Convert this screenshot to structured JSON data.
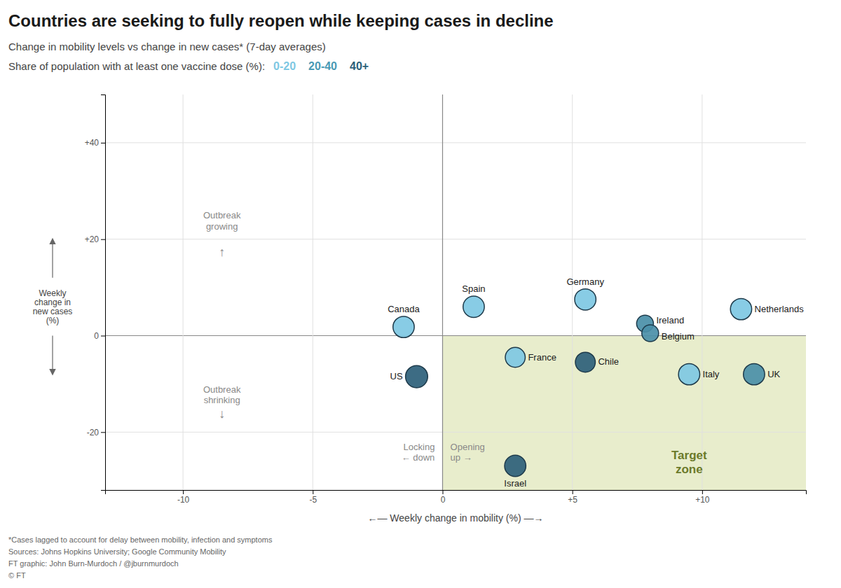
{
  "chart_data": {
    "type": "scatter",
    "title": "Countries are seeking to fully reopen while keeping cases in decline",
    "subtitle": "Change in mobility levels vs change in new cases* (7-day averages)",
    "legend_title": "Share of population with at least one vaccine dose (%):",
    "legend_labels": [
      "0-20",
      "20-40",
      "40+"
    ],
    "legend_colors": [
      "#7ec8e3",
      "#4a9ab5",
      "#2c5f7a"
    ],
    "x_label": "←— Weekly change in mobility (%) —→",
    "y_label": "Weekly\nchange in\nnew cases\n(%)",
    "xlim": [
      -13,
      14
    ],
    "ylim": [
      -32,
      50
    ],
    "xticks": [
      -10,
      -5,
      0,
      {
        "value": 5,
        "label": "+5"
      },
      {
        "value": 10,
        "label": "+10"
      }
    ],
    "yticks": [
      -20,
      0,
      {
        "value": 20,
        "label": "+20"
      },
      {
        "value": 40,
        "label": "+40"
      }
    ],
    "grid": true,
    "labels": [
      "UK",
      "Italy",
      "Netherlands",
      "Germany",
      "Ireland",
      "Belgium",
      "Spain",
      "France",
      "Chile",
      "Canada",
      "US",
      "Israel"
    ],
    "x": [
      12.0,
      9.5,
      11.5,
      5.5,
      7.8,
      8.0,
      1.2,
      2.8,
      5.5,
      -1.5,
      -1.0,
      2.8
    ],
    "values": [
      -8.0,
      -8.0,
      5.5,
      7.5,
      2.5,
      0.5,
      6.0,
      -4.5,
      -5.5,
      1.8,
      -8.5,
      -27.0
    ],
    "size": [
      480,
      480,
      480,
      480,
      300,
      300,
      480,
      420,
      420,
      480,
      520,
      480
    ],
    "colors": [
      "#4a8fa8",
      "#7ec8e3",
      "#7ec8e3",
      "#7ec8e3",
      "#4a8fa8",
      "#4a8fa8",
      "#7ec8e3",
      "#7ec8e3",
      "#2c5f7a",
      "#7ec8e3",
      "#2c5f7a",
      "#2c5f7a"
    ],
    "annotations": [
      "Outbreak\ngrowing",
      "↑",
      "Outbreak\nshrinking",
      "↓",
      "Locking\n← down",
      "Opening\nup →"
    ],
    "target_zone": {
      "label": "Target\nzone",
      "color": "#e8edcc"
    },
    "footnotes": [
      "*Cases lagged to account for delay between mobility, infection and symptoms",
      "Sources: Johns Hopkins University; Google Community Mobility",
      "FT graphic: John Burn-Murdoch / @jburnmurdoch",
      "© FT"
    ]
  }
}
